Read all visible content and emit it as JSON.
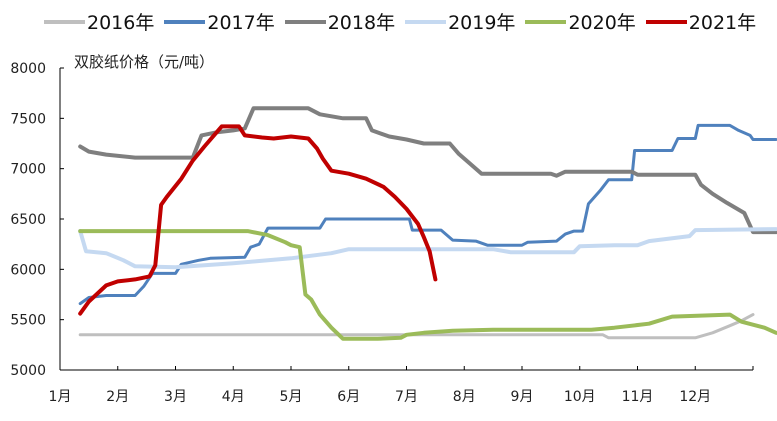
{
  "chart_data": {
    "type": "line",
    "title": "",
    "ylabel": "双胶纸价格（元/吨）",
    "xlabel": "",
    "ylim": [
      5000,
      8000
    ],
    "yticks": [
      5000,
      5500,
      6000,
      6500,
      7000,
      7500,
      8000
    ],
    "categories": [
      "1月",
      "2月",
      "3月",
      "4月",
      "5月",
      "6月",
      "7月",
      "8月",
      "9月",
      "10月",
      "11月",
      "12月"
    ],
    "x_unit": "month index (0 = start of 1月, 12 = end of 12月)",
    "grid": false,
    "legend_position": "top",
    "series": [
      {
        "name": "2016年",
        "color": "#BFBFBF",
        "width": 3,
        "points": [
          [
            0.35,
            5350
          ],
          [
            9.4,
            5350
          ],
          [
            9.5,
            5320
          ],
          [
            11.0,
            5320
          ],
          [
            11.3,
            5370
          ],
          [
            11.6,
            5440
          ],
          [
            11.8,
            5490
          ],
          [
            12.0,
            5550
          ]
        ]
      },
      {
        "name": "2017年",
        "color": "#4F81BD",
        "width": 3,
        "points": [
          [
            0.35,
            5660
          ],
          [
            0.5,
            5720
          ],
          [
            0.8,
            5740
          ],
          [
            1.3,
            5740
          ],
          [
            1.45,
            5830
          ],
          [
            1.6,
            5960
          ],
          [
            2.0,
            5960
          ],
          [
            2.1,
            6050
          ],
          [
            2.4,
            6090
          ],
          [
            2.6,
            6110
          ],
          [
            3.2,
            6120
          ],
          [
            3.3,
            6220
          ],
          [
            3.45,
            6250
          ],
          [
            3.6,
            6410
          ],
          [
            4.5,
            6410
          ],
          [
            4.6,
            6500
          ],
          [
            6.0,
            6500
          ],
          [
            6.05,
            6500
          ],
          [
            6.1,
            6390
          ],
          [
            6.6,
            6390
          ],
          [
            6.8,
            6290
          ],
          [
            7.2,
            6280
          ],
          [
            7.4,
            6240
          ],
          [
            8.0,
            6240
          ],
          [
            8.1,
            6270
          ],
          [
            8.6,
            6280
          ],
          [
            8.75,
            6350
          ],
          [
            8.9,
            6380
          ],
          [
            9.05,
            6380
          ],
          [
            9.15,
            6650
          ],
          [
            9.35,
            6780
          ],
          [
            9.5,
            6890
          ],
          [
            9.9,
            6890
          ],
          [
            9.95,
            7180
          ],
          [
            10.6,
            7180
          ],
          [
            10.7,
            7300
          ],
          [
            11.0,
            7300
          ],
          [
            11.05,
            7430
          ],
          [
            11.6,
            7430
          ],
          [
            11.75,
            7380
          ],
          [
            11.95,
            7330
          ],
          [
            12.0,
            7290
          ],
          [
            12.4,
            7290
          ]
        ]
      },
      {
        "name": "2018年",
        "color": "#7F7F7F",
        "width": 4,
        "points": [
          [
            0.35,
            7220
          ],
          [
            0.5,
            7170
          ],
          [
            0.8,
            7140
          ],
          [
            1.3,
            7110
          ],
          [
            2.3,
            7110
          ],
          [
            2.45,
            7330
          ],
          [
            2.7,
            7360
          ],
          [
            3.0,
            7380
          ],
          [
            3.2,
            7400
          ],
          [
            3.35,
            7600
          ],
          [
            4.3,
            7600
          ],
          [
            4.5,
            7540
          ],
          [
            4.9,
            7500
          ],
          [
            5.3,
            7500
          ],
          [
            5.4,
            7380
          ],
          [
            5.7,
            7320
          ],
          [
            6.0,
            7290
          ],
          [
            6.3,
            7250
          ],
          [
            6.75,
            7250
          ],
          [
            6.9,
            7150
          ],
          [
            7.1,
            7050
          ],
          [
            7.3,
            6950
          ],
          [
            8.0,
            6950
          ],
          [
            8.5,
            6950
          ],
          [
            8.6,
            6930
          ],
          [
            8.75,
            6970
          ],
          [
            9.9,
            6970
          ],
          [
            10.0,
            6940
          ],
          [
            10.5,
            6940
          ],
          [
            11.0,
            6940
          ],
          [
            11.1,
            6840
          ],
          [
            11.3,
            6750
          ],
          [
            11.55,
            6660
          ],
          [
            11.85,
            6560
          ],
          [
            12.0,
            6370
          ],
          [
            12.4,
            6370
          ]
        ]
      },
      {
        "name": "2019年",
        "color": "#C5D9F1",
        "width": 4,
        "points": [
          [
            0.35,
            6380
          ],
          [
            0.45,
            6180
          ],
          [
            0.8,
            6160
          ],
          [
            1.1,
            6090
          ],
          [
            1.3,
            6030
          ],
          [
            2.0,
            6020
          ],
          [
            3.0,
            6060
          ],
          [
            3.4,
            6080
          ],
          [
            3.6,
            6090
          ],
          [
            4.0,
            6110
          ],
          [
            4.7,
            6160
          ],
          [
            5.0,
            6200
          ],
          [
            6.5,
            6200
          ],
          [
            7.5,
            6200
          ],
          [
            7.8,
            6170
          ],
          [
            8.9,
            6170
          ],
          [
            9.0,
            6230
          ],
          [
            9.6,
            6240
          ],
          [
            10.0,
            6240
          ],
          [
            10.2,
            6280
          ],
          [
            10.9,
            6330
          ],
          [
            11.0,
            6390
          ],
          [
            12.4,
            6400
          ]
        ]
      },
      {
        "name": "2020年",
        "color": "#9BBB59",
        "width": 4,
        "points": [
          [
            0.35,
            6380
          ],
          [
            3.25,
            6380
          ],
          [
            3.6,
            6340
          ],
          [
            3.9,
            6270
          ],
          [
            4.0,
            6240
          ],
          [
            4.15,
            6220
          ],
          [
            4.25,
            5750
          ],
          [
            4.35,
            5700
          ],
          [
            4.5,
            5550
          ],
          [
            4.7,
            5420
          ],
          [
            4.9,
            5310
          ],
          [
            5.5,
            5310
          ],
          [
            5.9,
            5320
          ],
          [
            6.0,
            5350
          ],
          [
            6.3,
            5370
          ],
          [
            6.8,
            5390
          ],
          [
            7.5,
            5400
          ],
          [
            9.2,
            5400
          ],
          [
            9.6,
            5420
          ],
          [
            10.2,
            5460
          ],
          [
            10.6,
            5530
          ],
          [
            11.6,
            5550
          ],
          [
            11.8,
            5480
          ],
          [
            12.2,
            5420
          ],
          [
            12.4,
            5370
          ]
        ]
      },
      {
        "name": "2021年",
        "color": "#C00000",
        "width": 4,
        "points": [
          [
            0.35,
            5560
          ],
          [
            0.5,
            5680
          ],
          [
            0.8,
            5840
          ],
          [
            1.0,
            5880
          ],
          [
            1.3,
            5900
          ],
          [
            1.55,
            5930
          ],
          [
            1.65,
            6040
          ],
          [
            1.75,
            6640
          ],
          [
            1.85,
            6720
          ],
          [
            2.1,
            6900
          ],
          [
            2.3,
            7080
          ],
          [
            2.5,
            7220
          ],
          [
            2.8,
            7420
          ],
          [
            3.1,
            7420
          ],
          [
            3.2,
            7330
          ],
          [
            3.5,
            7310
          ],
          [
            3.7,
            7300
          ],
          [
            4.0,
            7320
          ],
          [
            4.3,
            7300
          ],
          [
            4.45,
            7200
          ],
          [
            4.55,
            7100
          ],
          [
            4.7,
            6980
          ],
          [
            5.0,
            6950
          ],
          [
            5.3,
            6900
          ],
          [
            5.6,
            6820
          ],
          [
            5.8,
            6720
          ],
          [
            6.0,
            6600
          ],
          [
            6.2,
            6450
          ],
          [
            6.3,
            6320
          ],
          [
            6.4,
            6180
          ],
          [
            6.5,
            5900
          ]
        ]
      }
    ]
  },
  "legend": {
    "items": [
      {
        "label": "2016年",
        "color": "#BFBFBF"
      },
      {
        "label": "2017年",
        "color": "#4F81BD"
      },
      {
        "label": "2018年",
        "color": "#7F7F7F"
      },
      {
        "label": "2019年",
        "color": "#C5D9F1"
      },
      {
        "label": "2020年",
        "color": "#9BBB59"
      },
      {
        "label": "2021年",
        "color": "#C00000"
      }
    ]
  },
  "axis": {
    "y_title": "双胶纸价格（元/吨）"
  }
}
